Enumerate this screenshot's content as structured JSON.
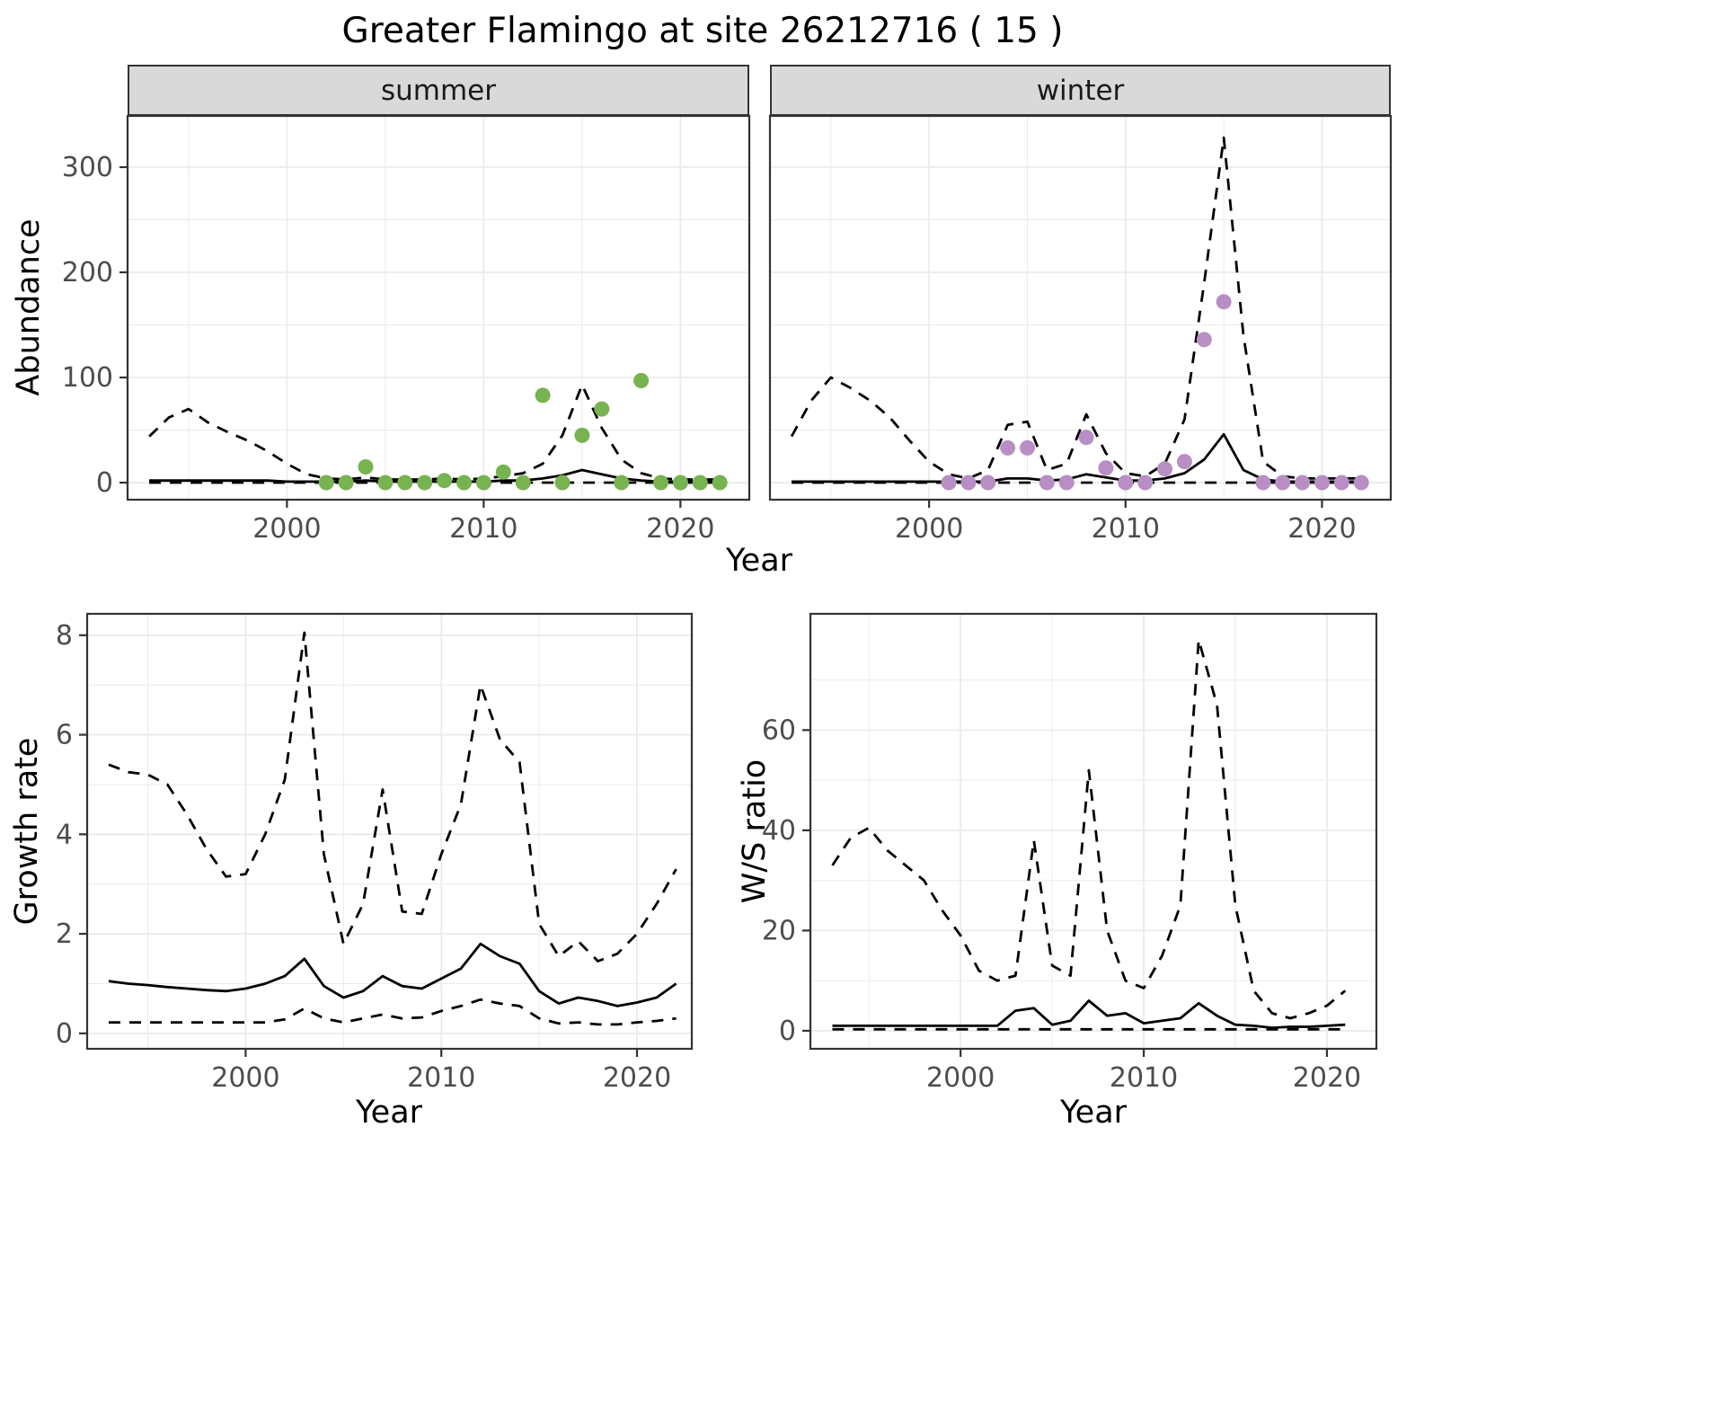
{
  "title": "Greater Flamingo at site 26212716 ( 15 )",
  "theme": {
    "strip_fill": "#D9D9D9",
    "panel_border": "#333333",
    "grid_color": "#EBEBEB",
    "line_color": "#000000",
    "tick_label_color": "#4D4D4D",
    "summer_point_color": "#77B350",
    "winter_point_color": "#B88EC4"
  },
  "chart_data": [
    {
      "type": "line",
      "facet": "summer",
      "xlabel": "Year",
      "ylabel": "Abundance",
      "xlim": [
        1991.9,
        2023.5
      ],
      "ylim": [
        -16.2,
        348.7
      ],
      "xticks": [
        2000,
        2010,
        2020
      ],
      "yticks": [
        0,
        100,
        200,
        300
      ],
      "grid": true,
      "legend": "none",
      "series": [
        {
          "name": "upper-ci",
          "style": "dashed",
          "x": [
            1993,
            1994,
            1995,
            1996,
            1997,
            1998,
            1999,
            2000,
            2001,
            2002,
            2003,
            2004,
            2005,
            2006,
            2007,
            2008,
            2009,
            2010,
            2011,
            2012,
            2013,
            2014,
            2015,
            2016,
            2017,
            2018,
            2019,
            2020,
            2021,
            2022
          ],
          "y": [
            44,
            62,
            70,
            57,
            48,
            40,
            30,
            18,
            8,
            4,
            3,
            5,
            3,
            3,
            3,
            4,
            3,
            4,
            6,
            9,
            18,
            45,
            93,
            52,
            22,
            9,
            4,
            3,
            3,
            3
          ]
        },
        {
          "name": "median",
          "style": "solid",
          "x": [
            1993,
            1994,
            1995,
            1996,
            1997,
            1998,
            1999,
            2000,
            2001,
            2002,
            2003,
            2004,
            2005,
            2006,
            2007,
            2008,
            2009,
            2010,
            2011,
            2012,
            2013,
            2014,
            2015,
            2016,
            2017,
            2018,
            2019,
            2020,
            2021,
            2022
          ],
          "y": [
            2,
            2,
            2,
            2,
            2,
            2,
            2,
            1,
            1,
            1,
            1,
            2,
            1,
            1,
            1,
            1,
            1,
            1,
            2,
            2,
            4,
            7,
            12,
            8,
            4,
            2,
            1,
            1,
            1,
            1
          ]
        },
        {
          "name": "lower-ci",
          "style": "dashed",
          "x": [
            1993,
            1994,
            1995,
            1996,
            1997,
            1998,
            1999,
            2000,
            2001,
            2002,
            2003,
            2004,
            2005,
            2006,
            2007,
            2008,
            2009,
            2010,
            2011,
            2012,
            2013,
            2014,
            2015,
            2016,
            2017,
            2018,
            2019,
            2020,
            2021,
            2022
          ],
          "y": [
            0,
            0,
            0,
            0,
            0,
            0,
            0,
            0,
            0,
            0,
            0,
            0,
            0,
            0,
            0,
            0,
            0,
            0,
            0,
            0,
            0,
            0,
            0,
            0,
            0,
            0,
            0,
            0,
            0,
            0
          ]
        }
      ],
      "points": {
        "name": "observed-summer-counts",
        "color": "#77B350",
        "x": [
          2002,
          2003,
          2004,
          2005,
          2006,
          2007,
          2008,
          2009,
          2010,
          2011,
          2012,
          2013,
          2014,
          2015,
          2016,
          2017,
          2018,
          2019,
          2020,
          2021,
          2022
        ],
        "y": [
          0,
          0,
          15,
          0,
          0,
          0,
          2,
          0,
          0,
          10,
          0,
          83,
          0,
          45,
          70,
          0,
          97,
          0,
          0,
          0,
          0
        ]
      }
    },
    {
      "type": "line",
      "facet": "winter",
      "xlabel": "",
      "ylabel": "",
      "xlim": [
        1991.9,
        2023.5
      ],
      "ylim": [
        -16.2,
        348.7
      ],
      "xticks": [
        2000,
        2010,
        2020
      ],
      "yticks": [
        0,
        100,
        200,
        300
      ],
      "grid": true,
      "legend": "none",
      "series": [
        {
          "name": "upper-ci",
          "style": "dashed",
          "x": [
            1993,
            1994,
            1995,
            1996,
            1997,
            1998,
            1999,
            2000,
            2001,
            2002,
            2003,
            2004,
            2005,
            2006,
            2007,
            2008,
            2009,
            2010,
            2011,
            2012,
            2013,
            2014,
            2015,
            2016,
            2017,
            2018,
            2019,
            2020,
            2021,
            2022
          ],
          "y": [
            44,
            78,
            100,
            90,
            78,
            62,
            40,
            20,
            8,
            4,
            12,
            55,
            58,
            12,
            18,
            65,
            28,
            9,
            6,
            18,
            60,
            190,
            328,
            140,
            20,
            6,
            4,
            4,
            4,
            4
          ]
        },
        {
          "name": "median",
          "style": "solid",
          "x": [
            1993,
            1994,
            1995,
            1996,
            1997,
            1998,
            1999,
            2000,
            2001,
            2002,
            2003,
            2004,
            2005,
            2006,
            2007,
            2008,
            2009,
            2010,
            2011,
            2012,
            2013,
            2014,
            2015,
            2016,
            2017,
            2018,
            2019,
            2020,
            2021,
            2022
          ],
          "y": [
            1,
            1,
            1,
            1,
            1,
            1,
            1,
            1,
            1,
            1,
            1,
            4,
            4,
            2,
            3,
            8,
            5,
            2,
            2,
            4,
            9,
            22,
            46,
            12,
            3,
            1,
            1,
            1,
            1,
            1
          ]
        },
        {
          "name": "lower-ci",
          "style": "dashed",
          "x": [
            1993,
            1994,
            1995,
            1996,
            1997,
            1998,
            1999,
            2000,
            2001,
            2002,
            2003,
            2004,
            2005,
            2006,
            2007,
            2008,
            2009,
            2010,
            2011,
            2012,
            2013,
            2014,
            2015,
            2016,
            2017,
            2018,
            2019,
            2020,
            2021,
            2022
          ],
          "y": [
            0,
            0,
            0,
            0,
            0,
            0,
            0,
            0,
            0,
            0,
            0,
            0,
            0,
            0,
            0,
            0,
            0,
            0,
            0,
            0,
            0,
            0,
            0,
            0,
            0,
            0,
            0,
            0,
            0,
            0
          ]
        }
      ],
      "points": {
        "name": "observed-winter-counts",
        "color": "#B88EC4",
        "x": [
          2001,
          2002,
          2003,
          2004,
          2005,
          2006,
          2007,
          2008,
          2009,
          2010,
          2011,
          2012,
          2013,
          2014,
          2015,
          2017,
          2018,
          2019,
          2020,
          2021,
          2022
        ],
        "y": [
          0,
          0,
          0,
          33,
          33,
          0,
          0,
          43,
          14,
          0,
          0,
          13,
          20,
          136,
          172,
          0,
          0,
          0,
          0,
          0,
          0
        ]
      }
    },
    {
      "type": "line",
      "xlabel": "Year",
      "ylabel": "Growth rate",
      "xlim": [
        1991.9,
        2022.8
      ],
      "ylim": [
        -0.31,
        8.43
      ],
      "xticks": [
        2000,
        2010,
        2020
      ],
      "yticks": [
        0,
        2,
        4,
        6,
        8
      ],
      "grid": true,
      "legend": "none",
      "series": [
        {
          "name": "upper-ci",
          "style": "dashed",
          "x": [
            1993,
            1994,
            1995,
            1996,
            1997,
            1998,
            1999,
            2000,
            2001,
            2002,
            2003,
            2004,
            2005,
            2006,
            2007,
            2008,
            2009,
            2010,
            2011,
            2012,
            2013,
            2014,
            2015,
            2016,
            2017,
            2018,
            2019,
            2020,
            2021,
            2022
          ],
          "y": [
            5.4,
            5.25,
            5.2,
            5.0,
            4.4,
            3.7,
            3.15,
            3.2,
            4.0,
            5.1,
            8.05,
            3.6,
            1.8,
            2.6,
            4.9,
            2.45,
            2.4,
            3.6,
            4.6,
            7.0,
            5.9,
            5.45,
            2.2,
            1.55,
            1.85,
            1.45,
            1.6,
            2.0,
            2.6,
            3.3
          ]
        },
        {
          "name": "median",
          "style": "solid",
          "x": [
            1993,
            1994,
            1995,
            1996,
            1997,
            1998,
            1999,
            2000,
            2001,
            2002,
            2003,
            2004,
            2005,
            2006,
            2007,
            2008,
            2009,
            2010,
            2011,
            2012,
            2013,
            2014,
            2015,
            2016,
            2017,
            2018,
            2019,
            2020,
            2021,
            2022
          ],
          "y": [
            1.05,
            1.0,
            0.97,
            0.93,
            0.9,
            0.87,
            0.85,
            0.9,
            1.0,
            1.15,
            1.5,
            0.95,
            0.72,
            0.85,
            1.15,
            0.95,
            0.9,
            1.1,
            1.3,
            1.8,
            1.55,
            1.4,
            0.85,
            0.6,
            0.72,
            0.65,
            0.55,
            0.62,
            0.72,
            1.0
          ]
        },
        {
          "name": "lower-ci",
          "style": "dashed",
          "x": [
            1993,
            1994,
            1995,
            1996,
            1997,
            1998,
            1999,
            2000,
            2001,
            2002,
            2003,
            2004,
            2005,
            2006,
            2007,
            2008,
            2009,
            2010,
            2011,
            2012,
            2013,
            2014,
            2015,
            2016,
            2017,
            2018,
            2019,
            2020,
            2021,
            2022
          ],
          "y": [
            0.22,
            0.22,
            0.22,
            0.22,
            0.22,
            0.22,
            0.22,
            0.22,
            0.22,
            0.28,
            0.5,
            0.3,
            0.22,
            0.3,
            0.38,
            0.3,
            0.32,
            0.45,
            0.55,
            0.68,
            0.6,
            0.55,
            0.3,
            0.2,
            0.22,
            0.18,
            0.18,
            0.22,
            0.25,
            0.3
          ]
        }
      ]
    },
    {
      "type": "line",
      "xlabel": "Year",
      "ylabel": "W/S ratio",
      "xlim": [
        1991.8,
        2022.7
      ],
      "ylim": [
        -3.6,
        83.2
      ],
      "xticks": [
        2000,
        2010,
        2020
      ],
      "yticks": [
        0,
        20,
        40,
        60
      ],
      "grid": true,
      "legend": "none",
      "series": [
        {
          "name": "upper-ci",
          "style": "dashed",
          "x": [
            1993,
            1994,
            1995,
            1996,
            1997,
            1998,
            1999,
            2000,
            2001,
            2002,
            2003,
            2004,
            2005,
            2006,
            2007,
            2008,
            2009,
            2010,
            2011,
            2012,
            2013,
            2014,
            2015,
            2016,
            2017,
            2018,
            2019,
            2020,
            2021
          ],
          "y": [
            33,
            38.5,
            40.5,
            36,
            33,
            30,
            24,
            19,
            12,
            10,
            11,
            38,
            13,
            11,
            52,
            20,
            10,
            8.5,
            15,
            25,
            78,
            65,
            25,
            8,
            3.5,
            2.5,
            3.5,
            5,
            8
          ]
        },
        {
          "name": "median",
          "style": "solid",
          "x": [
            1993,
            1994,
            1995,
            1996,
            1997,
            1998,
            1999,
            2000,
            2001,
            2002,
            2003,
            2004,
            2005,
            2006,
            2007,
            2008,
            2009,
            2010,
            2011,
            2012,
            2013,
            2014,
            2015,
            2016,
            2017,
            2018,
            2019,
            2020,
            2021
          ],
          "y": [
            1,
            1,
            1,
            1,
            1,
            1,
            1,
            1,
            1,
            1,
            4,
            4.5,
            1.2,
            2,
            6,
            3,
            3.5,
            1.5,
            2,
            2.5,
            5.5,
            3,
            1.2,
            1,
            0.6,
            0.8,
            0.8,
            1,
            1.2
          ]
        },
        {
          "name": "lower-ci",
          "style": "dashed",
          "x": [
            1993,
            1994,
            1995,
            1996,
            1997,
            1998,
            1999,
            2000,
            2001,
            2002,
            2003,
            2004,
            2005,
            2006,
            2007,
            2008,
            2009,
            2010,
            2011,
            2012,
            2013,
            2014,
            2015,
            2016,
            2017,
            2018,
            2019,
            2020,
            2021
          ],
          "y": [
            0.3,
            0.3,
            0.3,
            0.3,
            0.3,
            0.3,
            0.3,
            0.3,
            0.3,
            0.3,
            0.3,
            0.3,
            0.3,
            0.3,
            0.3,
            0.3,
            0.3,
            0.3,
            0.3,
            0.3,
            0.3,
            0.3,
            0.3,
            0.3,
            0.3,
            0.3,
            0.3,
            0.3,
            0.3
          ]
        }
      ]
    }
  ]
}
